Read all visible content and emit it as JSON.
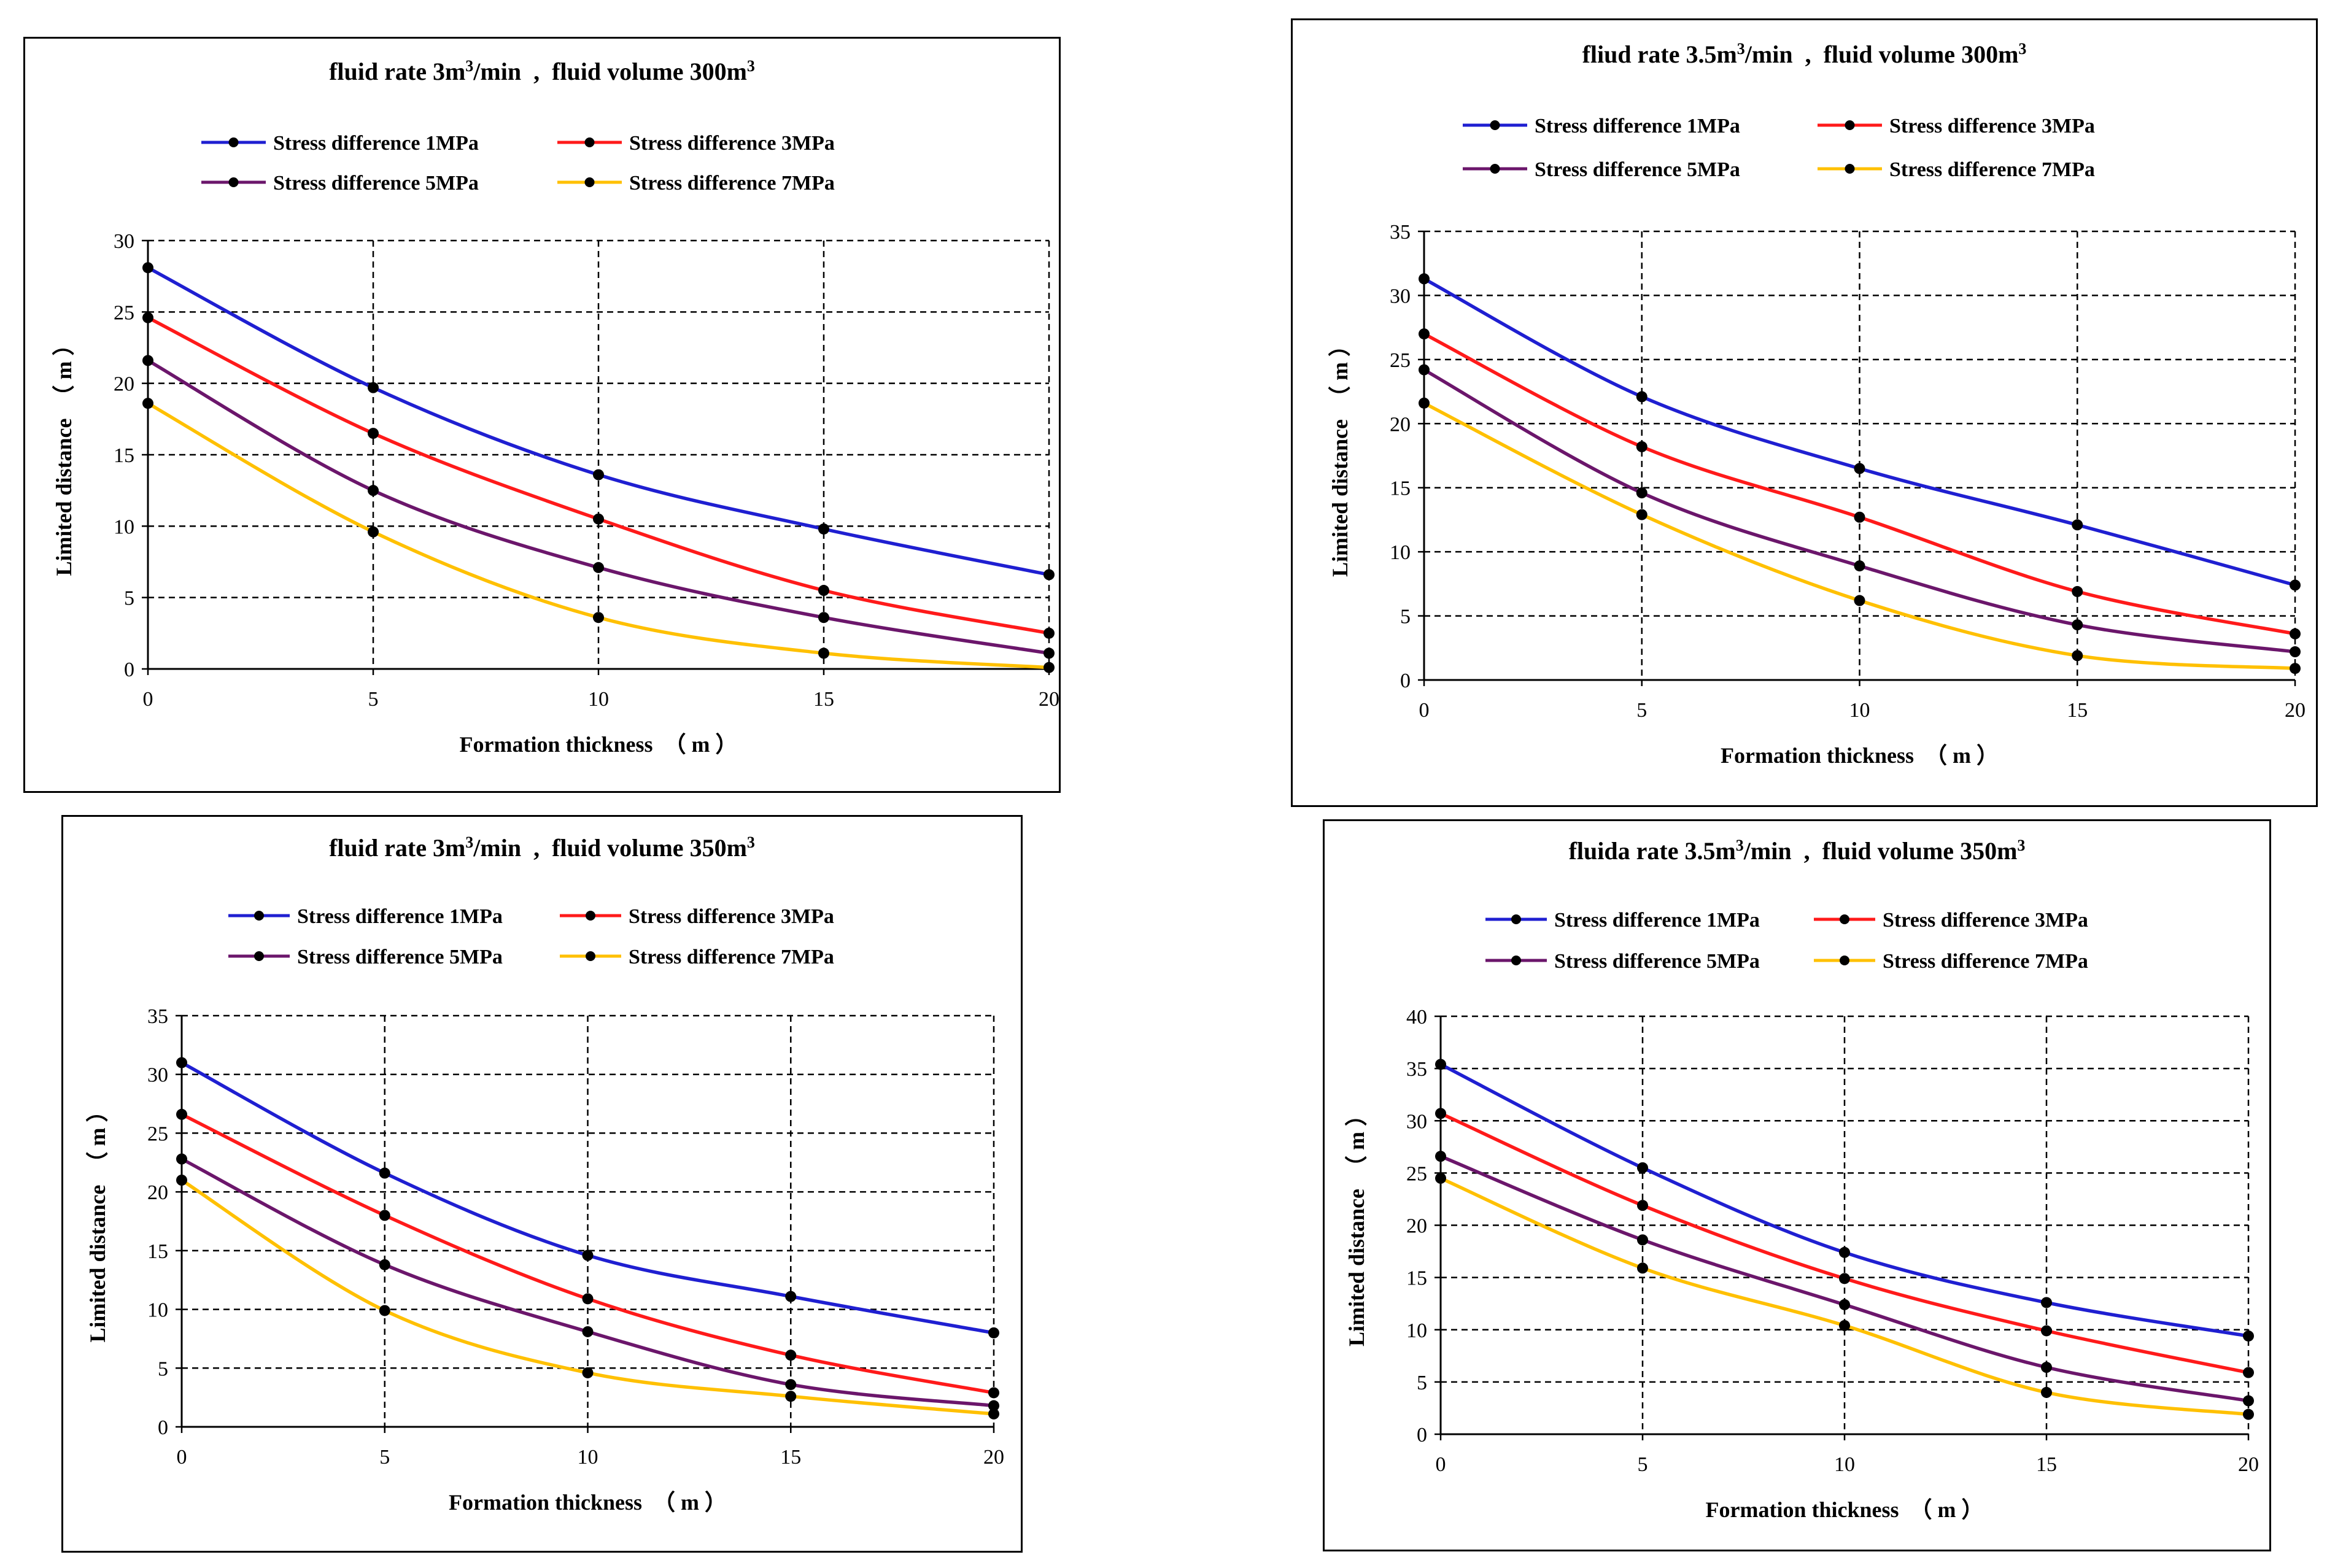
{
  "series_names": [
    "Stress difference 1MPa",
    "Stress difference 3MPa",
    "Stress difference 5MPa",
    "Stress difference 7MPa"
  ],
  "series_colors": [
    "#1f1fd1",
    "#ff1a1a",
    "#6b166b",
    "#ffc000"
  ],
  "chart_data": [
    {
      "type": "line",
      "title_parts": [
        "fluid rate 3m",
        "3",
        "/min  ,  fluid volume 300m",
        "3"
      ],
      "xlabel": "Formation thickness  （ m ）",
      "ylabel": "Limited distance  （ m ）",
      "x": [
        0,
        5,
        10,
        15,
        20
      ],
      "xlim": [
        0,
        20
      ],
      "xticks": [
        0,
        5,
        10,
        15,
        20
      ],
      "ylim": [
        0,
        30
      ],
      "yticks": [
        0,
        5,
        10,
        15,
        20,
        25,
        30
      ],
      "series": [
        {
          "name": "Stress difference 1MPa",
          "values": [
            28.1,
            19.7,
            13.6,
            9.8,
            6.6
          ]
        },
        {
          "name": "Stress difference 3MPa",
          "values": [
            24.6,
            16.5,
            10.5,
            5.5,
            2.5
          ]
        },
        {
          "name": "Stress difference 5MPa",
          "values": [
            21.6,
            12.5,
            7.1,
            3.6,
            1.1
          ]
        },
        {
          "name": "Stress difference 7MPa",
          "values": [
            18.6,
            9.6,
            3.6,
            1.1,
            0.1
          ]
        }
      ]
    },
    {
      "type": "line",
      "title_parts": [
        "fliud rate 3.5m",
        "3",
        "/min  ,  fluid volume 300m",
        "3"
      ],
      "xlabel": "Formation thickness  （ m ）",
      "ylabel": "Limited distance  （ m ）",
      "x": [
        0,
        5,
        10,
        15,
        20
      ],
      "xlim": [
        0,
        20
      ],
      "xticks": [
        0,
        5,
        10,
        15,
        20
      ],
      "ylim": [
        0,
        35
      ],
      "yticks": [
        0,
        5,
        10,
        15,
        20,
        25,
        30,
        35
      ],
      "series": [
        {
          "name": "Stress difference 1MPa",
          "values": [
            31.3,
            22.1,
            16.5,
            12.1,
            7.4
          ]
        },
        {
          "name": "Stress difference 3MPa",
          "values": [
            27.0,
            18.2,
            12.7,
            6.9,
            3.6
          ]
        },
        {
          "name": "Stress difference 5MPa",
          "values": [
            24.2,
            14.6,
            8.9,
            4.3,
            2.2
          ]
        },
        {
          "name": "Stress difference 7MPa",
          "values": [
            21.6,
            12.9,
            6.2,
            1.9,
            0.9
          ]
        }
      ]
    },
    {
      "type": "line",
      "title_parts": [
        "fluid rate 3m",
        "3",
        "/min  ,  fluid volume 350m",
        "3"
      ],
      "xlabel": "Formation thickness  （ m ）",
      "ylabel": "Limited distance  （ m ）",
      "x": [
        0,
        5,
        10,
        15,
        20
      ],
      "xlim": [
        0,
        20
      ],
      "xticks": [
        0,
        5,
        10,
        15,
        20
      ],
      "ylim": [
        0,
        35
      ],
      "yticks": [
        0,
        5,
        10,
        15,
        20,
        25,
        30,
        35
      ],
      "series": [
        {
          "name": "Stress difference 1MPa",
          "values": [
            31.0,
            21.6,
            14.6,
            11.1,
            8.0
          ]
        },
        {
          "name": "Stress difference 3MPa",
          "values": [
            26.6,
            18.0,
            10.9,
            6.1,
            2.9
          ]
        },
        {
          "name": "Stress difference 5MPa",
          "values": [
            22.8,
            13.8,
            8.1,
            3.6,
            1.8
          ]
        },
        {
          "name": "Stress difference 7MPa",
          "values": [
            21.0,
            9.9,
            4.6,
            2.6,
            1.1
          ]
        }
      ]
    },
    {
      "type": "line",
      "title_parts": [
        "fluida rate 3.5m",
        "3",
        "/min  ,  fluid volume 350m",
        "3"
      ],
      "xlabel": "Formation thickness  （ m ）",
      "ylabel": "Limited distance  （ m ）",
      "x": [
        0,
        5,
        10,
        15,
        20
      ],
      "xlim": [
        0,
        20
      ],
      "xticks": [
        0,
        5,
        10,
        15,
        20
      ],
      "ylim": [
        0,
        40
      ],
      "yticks": [
        0,
        5,
        10,
        15,
        20,
        25,
        30,
        35,
        40
      ],
      "series": [
        {
          "name": "Stress difference 1MPa",
          "values": [
            35.4,
            25.5,
            17.4,
            12.6,
            9.4
          ]
        },
        {
          "name": "Stress difference 3MPa",
          "values": [
            30.7,
            21.9,
            14.9,
            9.9,
            5.9
          ]
        },
        {
          "name": "Stress difference 5MPa",
          "values": [
            26.6,
            18.6,
            12.4,
            6.4,
            3.2
          ]
        },
        {
          "name": "Stress difference 7MPa",
          "values": [
            24.5,
            15.9,
            10.4,
            4.0,
            1.9
          ]
        }
      ]
    }
  ]
}
